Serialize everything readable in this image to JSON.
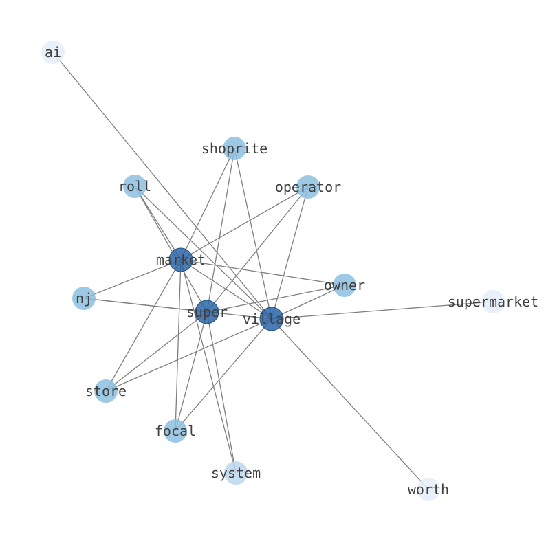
{
  "graph": {
    "nodes": [
      {
        "id": "ai",
        "label": "ai",
        "tier": "light"
      },
      {
        "id": "shoprite",
        "label": "shoprite",
        "tier": "mid"
      },
      {
        "id": "roll",
        "label": "roll",
        "tier": "mid"
      },
      {
        "id": "operator",
        "label": "operator",
        "tier": "mid"
      },
      {
        "id": "market",
        "label": "market",
        "tier": "dark"
      },
      {
        "id": "owner",
        "label": "owner",
        "tier": "mid"
      },
      {
        "id": "nj",
        "label": "nj",
        "tier": "mid"
      },
      {
        "id": "super",
        "label": "super",
        "tier": "dark"
      },
      {
        "id": "village",
        "label": "village",
        "tier": "dark"
      },
      {
        "id": "supermarket",
        "label": "supermarket",
        "tier": "light"
      },
      {
        "id": "store",
        "label": "store",
        "tier": "mid"
      },
      {
        "id": "focal",
        "label": "focal",
        "tier": "mid"
      },
      {
        "id": "system",
        "label": "system",
        "tier": "pale"
      },
      {
        "id": "worth",
        "label": "worth",
        "tier": "light"
      }
    ],
    "edges": [
      [
        "ai",
        "village"
      ],
      [
        "roll",
        "market"
      ],
      [
        "roll",
        "super"
      ],
      [
        "roll",
        "village"
      ],
      [
        "shoprite",
        "market"
      ],
      [
        "shoprite",
        "super"
      ],
      [
        "shoprite",
        "village"
      ],
      [
        "operator",
        "market"
      ],
      [
        "operator",
        "super"
      ],
      [
        "operator",
        "village"
      ],
      [
        "market",
        "owner"
      ],
      [
        "market",
        "village"
      ],
      [
        "market",
        "nj"
      ],
      [
        "market",
        "store"
      ],
      [
        "market",
        "focal"
      ],
      [
        "market",
        "system"
      ],
      [
        "owner",
        "super"
      ],
      [
        "owner",
        "village"
      ],
      [
        "nj",
        "super"
      ],
      [
        "nj",
        "village"
      ],
      [
        "super",
        "store"
      ],
      [
        "super",
        "focal"
      ],
      [
        "super",
        "system"
      ],
      [
        "village",
        "store"
      ],
      [
        "village",
        "focal"
      ],
      [
        "village",
        "supermarket"
      ],
      [
        "village",
        "worth"
      ]
    ],
    "colors": {
      "edge": "#7f7f7f",
      "label": "#404040",
      "dark": "#2b65a6",
      "mid": "#8dbfe0",
      "pale": "#bcd7ec",
      "light": "#e6eff9"
    }
  }
}
